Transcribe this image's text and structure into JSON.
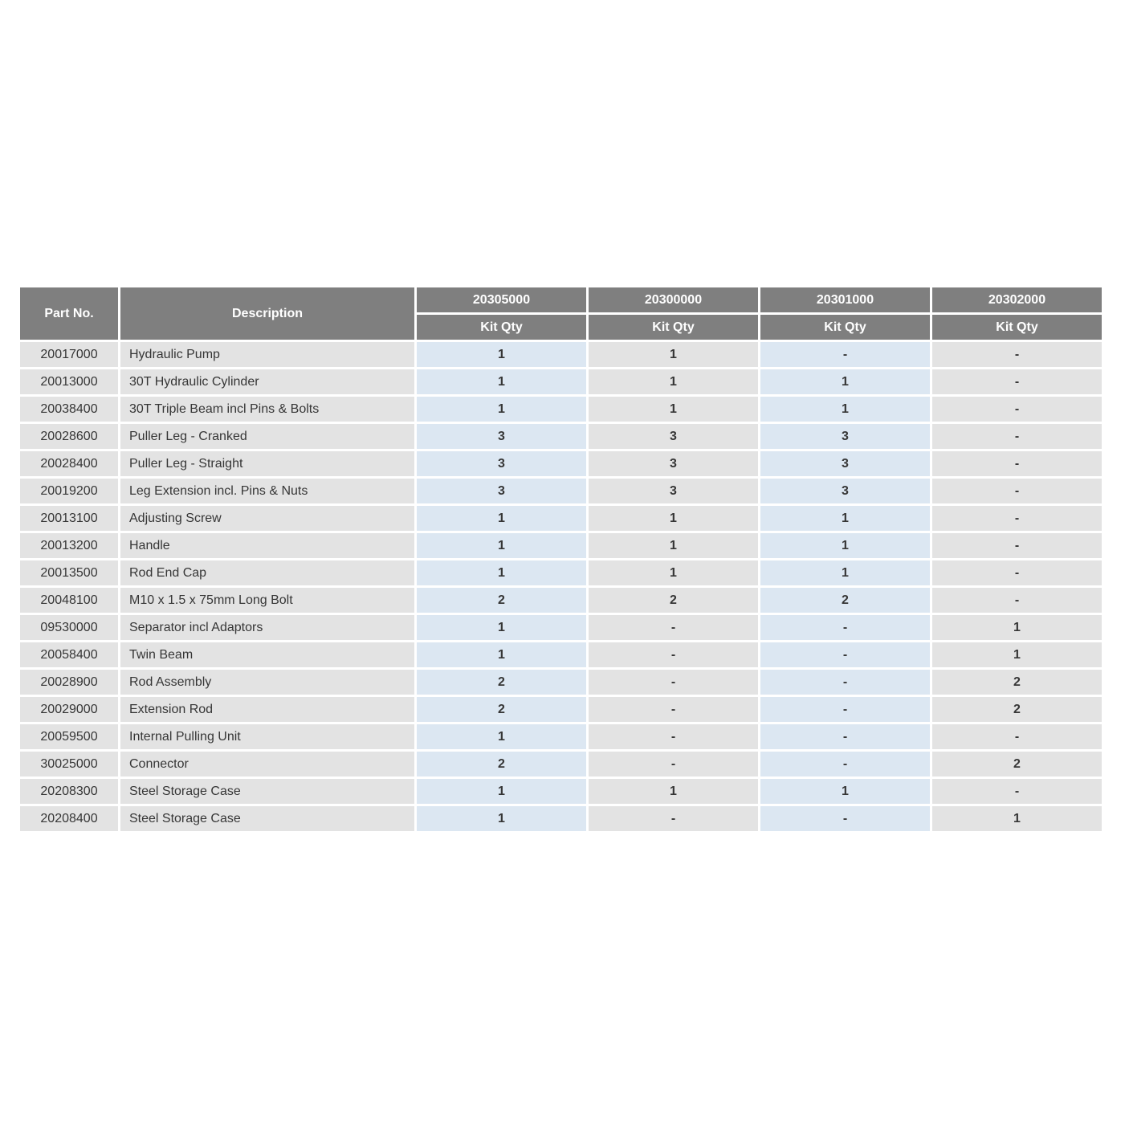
{
  "page": {
    "background": "#ffffff"
  },
  "colors": {
    "header_bg": "#7f7f7f",
    "header_text": "#ffffff",
    "row_gray": "#e3e3e3",
    "row_blue": "#dce7f2",
    "cell_text": "#363636"
  },
  "table": {
    "header": {
      "part_no": "Part No.",
      "description": "Description",
      "sub_label": "Kit Qty",
      "kits": [
        "20305000",
        "20300000",
        "20301000",
        "20302000"
      ]
    },
    "column_styles": [
      "blue",
      "gray",
      "blue",
      "gray"
    ],
    "rows": [
      {
        "part_no": "20017000",
        "description": "Hydraulic Pump",
        "qty": [
          "1",
          "1",
          "-",
          "-"
        ]
      },
      {
        "part_no": "20013000",
        "description": "30T Hydraulic Cylinder",
        "qty": [
          "1",
          "1",
          "1",
          "-"
        ]
      },
      {
        "part_no": "20038400",
        "description": "30T Triple Beam incl Pins & Bolts",
        "qty": [
          "1",
          "1",
          "1",
          "-"
        ]
      },
      {
        "part_no": "20028600",
        "description": "Puller Leg - Cranked",
        "qty": [
          "3",
          "3",
          "3",
          "-"
        ]
      },
      {
        "part_no": "20028400",
        "description": "Puller Leg - Straight",
        "qty": [
          "3",
          "3",
          "3",
          "-"
        ]
      },
      {
        "part_no": "20019200",
        "description": "Leg Extension incl. Pins & Nuts",
        "qty": [
          "3",
          "3",
          "3",
          "-"
        ]
      },
      {
        "part_no": "20013100",
        "description": "Adjusting Screw",
        "qty": [
          "1",
          "1",
          "1",
          "-"
        ]
      },
      {
        "part_no": "20013200",
        "description": "Handle",
        "qty": [
          "1",
          "1",
          "1",
          "-"
        ]
      },
      {
        "part_no": "20013500",
        "description": "Rod End Cap",
        "qty": [
          "1",
          "1",
          "1",
          "-"
        ]
      },
      {
        "part_no": "20048100",
        "description": "M10 x 1.5 x 75mm Long Bolt",
        "qty": [
          "2",
          "2",
          "2",
          "-"
        ]
      },
      {
        "part_no": "09530000",
        "description": "Separator incl Adaptors",
        "qty": [
          "1",
          "-",
          "-",
          "1"
        ]
      },
      {
        "part_no": "20058400",
        "description": "Twin Beam",
        "qty": [
          "1",
          "-",
          "-",
          "1"
        ]
      },
      {
        "part_no": "20028900",
        "description": "Rod Assembly",
        "qty": [
          "2",
          "-",
          "-",
          "2"
        ]
      },
      {
        "part_no": "20029000",
        "description": "Extension Rod",
        "qty": [
          "2",
          "-",
          "-",
          "2"
        ]
      },
      {
        "part_no": "20059500",
        "description": "Internal Pulling Unit",
        "qty": [
          "1",
          "-",
          "-",
          "-"
        ]
      },
      {
        "part_no": "30025000",
        "description": "Connector",
        "qty": [
          "2",
          "-",
          "-",
          "2"
        ]
      },
      {
        "part_no": "20208300",
        "description": "Steel Storage Case",
        "qty": [
          "1",
          "1",
          "1",
          "-"
        ]
      },
      {
        "part_no": "20208400",
        "description": "Steel Storage Case",
        "qty": [
          "1",
          "-",
          "-",
          "1"
        ]
      }
    ]
  }
}
